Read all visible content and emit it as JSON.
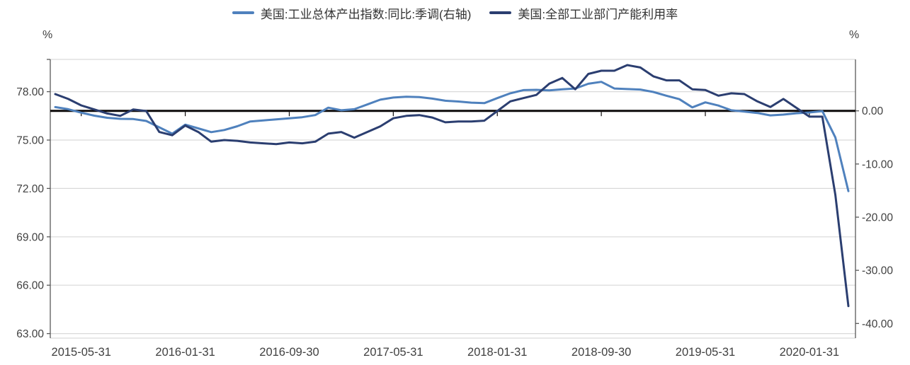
{
  "chart_data": {
    "type": "line",
    "title": "",
    "legend_position": "top",
    "grid": true,
    "x": [
      "2015-03",
      "2015-04",
      "2015-05",
      "2015-06",
      "2015-07",
      "2015-08",
      "2015-09",
      "2015-10",
      "2015-11",
      "2015-12",
      "2016-01",
      "2016-02",
      "2016-03",
      "2016-04",
      "2016-05",
      "2016-06",
      "2016-07",
      "2016-08",
      "2016-09",
      "2016-10",
      "2016-11",
      "2016-12",
      "2017-01",
      "2017-02",
      "2017-03",
      "2017-04",
      "2017-05",
      "2017-06",
      "2017-07",
      "2017-08",
      "2017-09",
      "2017-10",
      "2017-11",
      "2017-12",
      "2018-01",
      "2018-02",
      "2018-03",
      "2018-04",
      "2018-05",
      "2018-06",
      "2018-07",
      "2018-08",
      "2018-09",
      "2018-10",
      "2018-11",
      "2018-12",
      "2019-01",
      "2019-02",
      "2019-03",
      "2019-04",
      "2019-05",
      "2019-06",
      "2019-07",
      "2019-08",
      "2019-09",
      "2019-10",
      "2019-11",
      "2019-12",
      "2020-01",
      "2020-02",
      "2020-03",
      "2020-04"
    ],
    "x_tick_labels": [
      "2015-05-31",
      "2016-01-31",
      "2016-09-30",
      "2017-05-31",
      "2018-01-31",
      "2018-09-30",
      "2019-05-31",
      "2020-01-31"
    ],
    "x_tick_indices": [
      2,
      10,
      18,
      26,
      34,
      42,
      50,
      58
    ],
    "series": [
      {
        "name": "美国:工业总体产出指数:同比:季调(右轴)",
        "axis": "right",
        "color": "#4F81BD",
        "values": [
          0.7,
          0.3,
          -0.35,
          -0.9,
          -1.3,
          -1.5,
          -1.55,
          -1.9,
          -3.1,
          -4.3,
          -2.6,
          -3.3,
          -4.0,
          -3.6,
          -2.9,
          -2.0,
          -1.8,
          -1.6,
          -1.4,
          -1.2,
          -0.8,
          0.6,
          0.1,
          0.3,
          1.2,
          2.1,
          2.5,
          2.65,
          2.6,
          2.3,
          1.9,
          1.75,
          1.55,
          1.45,
          2.4,
          3.3,
          3.9,
          3.95,
          3.85,
          4.05,
          4.2,
          5.1,
          5.45,
          4.2,
          4.1,
          4.0,
          3.55,
          2.85,
          2.2,
          0.65,
          1.6,
          1.0,
          0.1,
          -0.15,
          -0.4,
          -0.85,
          -0.7,
          -0.45,
          -0.3,
          -0.05,
          -5.0,
          -15.1
        ]
      },
      {
        "name": "美国:全部工业部门产能利用率",
        "axis": "left",
        "color": "#2B3E70",
        "values": [
          77.85,
          77.55,
          77.15,
          76.9,
          76.65,
          76.5,
          76.9,
          76.8,
          75.5,
          75.3,
          75.9,
          75.5,
          74.9,
          75.0,
          74.95,
          74.85,
          74.8,
          74.75,
          74.85,
          74.8,
          74.9,
          75.4,
          75.5,
          75.15,
          75.5,
          75.85,
          76.35,
          76.5,
          76.55,
          76.4,
          76.1,
          76.15,
          76.15,
          76.2,
          76.8,
          77.4,
          77.6,
          77.8,
          78.5,
          78.85,
          78.15,
          79.1,
          79.3,
          79.3,
          79.65,
          79.5,
          78.95,
          78.7,
          78.7,
          78.15,
          78.1,
          77.75,
          77.9,
          77.85,
          77.4,
          77.05,
          77.55,
          77.0,
          76.45,
          76.45,
          71.6,
          64.7
        ]
      }
    ],
    "left_axis": {
      "unit": "%",
      "tick_labels": [
        "78.00",
        "75.00",
        "72.00",
        "69.00",
        "66.00",
        "63.00"
      ],
      "tick_values": [
        78,
        75,
        72,
        69,
        66,
        63
      ],
      "range": [
        62.75,
        80.0
      ]
    },
    "right_axis": {
      "unit": "%",
      "tick_labels": [
        "0.00",
        "-10.00",
        "-20.00",
        "-30.00",
        "-40.00"
      ],
      "tick_values": [
        0,
        -10,
        -20,
        -30,
        -40
      ],
      "range": [
        -42.7,
        9.7
      ]
    },
    "zero_line_value_right_axis": 0.0
  },
  "colors": {
    "grid": "#D9D9D9",
    "axis_line": "#595959",
    "zero_line": "#0D0A0A",
    "text": "#404040",
    "background": "#FFFFFF"
  }
}
